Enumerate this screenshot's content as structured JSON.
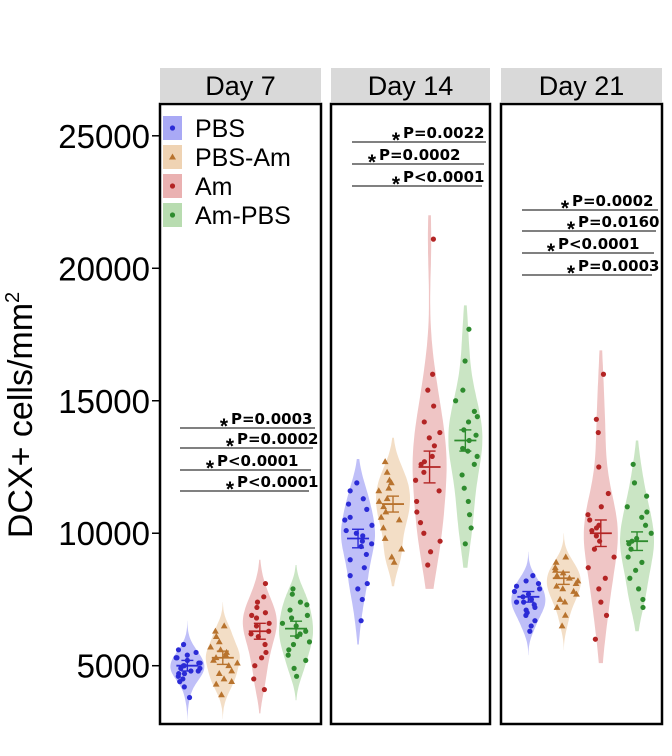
{
  "chart_data": {
    "type": "violin",
    "ylabel": "DCX+ cells/mm",
    "ylabel_superscript": "2",
    "yticks": [
      5000,
      10000,
      15000,
      20000,
      25000
    ],
    "ylim": [
      2800,
      26200
    ],
    "groups": [
      "PBS",
      "PBS-Am",
      "Am",
      "Am-PBS"
    ],
    "colors": {
      "PBS": "#2b2bd6",
      "PBS-Am": "#b8732e",
      "Am": "#b32424",
      "Am-PBS": "#2e8b2e"
    },
    "fills": {
      "PBS": "#a9a9f5",
      "PBS-Am": "#efd3b3",
      "Am": "#eab1b1",
      "Am-PBS": "#b8dcb0"
    },
    "markers": {
      "PBS": "circle",
      "PBS-Am": "triangle",
      "Am": "circle",
      "Am-PBS": "circle"
    },
    "legend_position": "top-left",
    "panels": [
      {
        "label": "Day 7",
        "series": [
          {
            "group": "PBS",
            "mean": 5000,
            "sem": 200,
            "values": [
              5100,
              4900,
              5300,
              4700,
              5500,
              4600,
              5000,
              5200,
              4800,
              5800,
              4400,
              5100,
              5000,
              4700,
              5400,
              4900,
              5300,
              3800,
              4200,
              4500,
              5600,
              4800
            ]
          },
          {
            "group": "PBS-Am",
            "mean": 5300,
            "sem": 250,
            "values": [
              5200,
              4800,
              5600,
              6100,
              4500,
              5900,
              5000,
              5400,
              6300,
              4300,
              3900,
              5700,
              5100,
              4700,
              5500,
              6500,
              4400,
              5300
            ]
          },
          {
            "group": "Am",
            "mean": 6300,
            "sem": 300,
            "values": [
              6500,
              6100,
              7200,
              5500,
              7400,
              6800,
              5000,
              6200,
              7600,
              4500,
              6900,
              5800,
              6300,
              8100,
              4100,
              6600,
              7000,
              5300
            ]
          },
          {
            "group": "Am-PBS",
            "mean": 6400,
            "sem": 280,
            "values": [
              6500,
              5900,
              7100,
              7700,
              5400,
              6800,
              6200,
              7400,
              5600,
              6900,
              5200,
              7900,
              6100,
              4900,
              6600,
              7300,
              5800,
              6300,
              4600
            ]
          }
        ],
        "comparisons": [
          {
            "text": "P=0.0003"
          },
          {
            "text": "P=0.0002"
          },
          {
            "text": "P<0.0001"
          },
          {
            "text": "P<0.0001"
          }
        ]
      },
      {
        "label": "Day 14",
        "series": [
          {
            "group": "PBS",
            "mean": 9800,
            "sem": 350,
            "values": [
              11900,
              11600,
              11300,
              10900,
              10600,
              10300,
              10100,
              9900,
              9700,
              9500,
              9200,
              9000,
              8700,
              8400,
              8100,
              10500,
              9600,
              7900,
              7500,
              6700,
              11100,
              10000
            ]
          },
          {
            "group": "PBS-Am",
            "mean": 11100,
            "sem": 300,
            "values": [
              12700,
              12300,
              11900,
              11600,
              11300,
              11000,
              10800,
              10500,
              10200,
              9800,
              9400,
              8900,
              11200,
              11700,
              10600,
              9100,
              12000
            ]
          },
          {
            "group": "Am",
            "mean": 12500,
            "sem": 600,
            "values": [
              21100,
              16000,
              15400,
              14800,
              14200,
              13800,
              13300,
              12900,
              12600,
              12300,
              12000,
              11600,
              11200,
              10800,
              10400,
              10000,
              9700,
              9300,
              8800,
              12700,
              13600
            ]
          },
          {
            "group": "Am-PBS",
            "mean": 13500,
            "sem": 400,
            "values": [
              17700,
              16500,
              15400,
              15000,
              14600,
              14200,
              13900,
              13700,
              13500,
              13200,
              12900,
              12600,
              12200,
              11700,
              11200,
              10700,
              10200,
              9600,
              14400,
              13100
            ]
          }
        ],
        "comparisons": [
          {
            "text": "P=0.0022"
          },
          {
            "text": "P=0.0002"
          },
          {
            "text": "P<0.0001"
          }
        ]
      },
      {
        "label": "Day 21",
        "series": [
          {
            "group": "PBS",
            "mean": 7600,
            "sem": 200,
            "values": [
              8400,
              8200,
              8000,
              7900,
              7700,
              7500,
              7400,
              7300,
              7200,
              7000,
              6900,
              6700,
              6500,
              7800,
              7600,
              7100,
              8100,
              6300,
              7400
            ]
          },
          {
            "group": "PBS-Am",
            "mean": 8300,
            "sem": 230,
            "values": [
              9100,
              8900,
              8700,
              8500,
              8400,
              8200,
              8100,
              7900,
              7700,
              7500,
              7200,
              6900,
              8600,
              8300,
              8000,
              7800,
              7400,
              6500
            ]
          },
          {
            "group": "Am",
            "mean": 10000,
            "sem": 500,
            "values": [
              16000,
              14300,
              13800,
              12500,
              11500,
              11000,
              10700,
              10500,
              10300,
              10100,
              9900,
              9700,
              9400,
              9100,
              8700,
              8300,
              7900,
              7400,
              6900,
              6000,
              10200
            ]
          },
          {
            "group": "Am-PBS",
            "mean": 9700,
            "sem": 350,
            "values": [
              12600,
              11900,
              11400,
              11000,
              10600,
              10300,
              10000,
              9800,
              9600,
              9400,
              9100,
              8900,
              8600,
              8300,
              7900,
              7500,
              7200,
              9700,
              10800
            ]
          }
        ],
        "comparisons": [
          {
            "text": "P=0.0002"
          },
          {
            "text": "P=0.0160"
          },
          {
            "text": "P<0.0001"
          },
          {
            "text": "P=0.0003"
          }
        ]
      }
    ]
  },
  "star_symbol": "*"
}
